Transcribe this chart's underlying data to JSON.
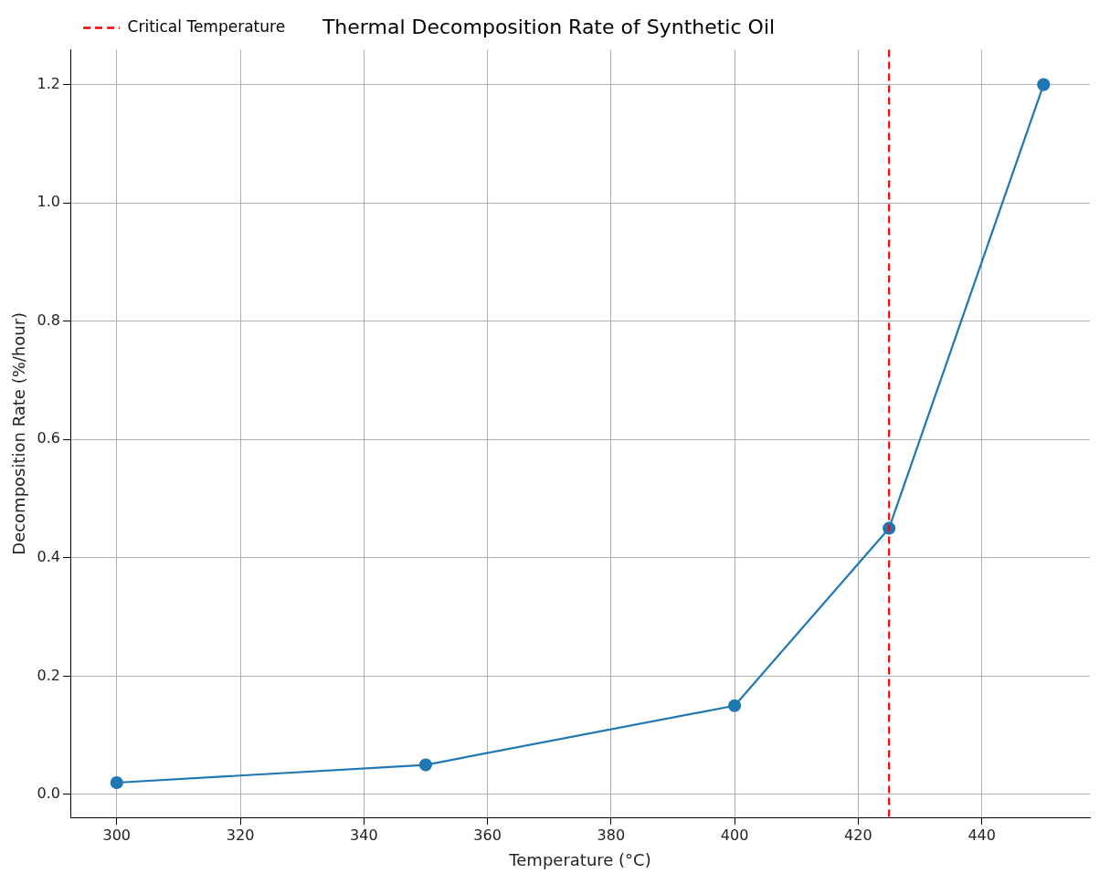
{
  "chart_data": {
    "type": "line",
    "title": "Thermal Decomposition Rate of Synthetic Oil",
    "xlabel": "Temperature (°C)",
    "ylabel": "Decomposition Rate (%/hour)",
    "x": [
      300,
      350,
      400,
      425,
      450
    ],
    "series": [
      {
        "color": "#1f77b4",
        "values": [
          0.02,
          0.05,
          0.15,
          0.45,
          1.2
        ]
      }
    ],
    "xlim": [
      292.5,
      457.5
    ],
    "xticks": [
      300,
      320,
      340,
      360,
      380,
      400,
      420,
      440
    ],
    "ylim": [
      -0.039,
      1.259
    ],
    "yticks": [
      {
        "value": 0,
        "label": "0.0"
      },
      0.2,
      0.4,
      0.6,
      0.8,
      {
        "value": 1,
        "label": "1.0"
      },
      1.2
    ],
    "ref_lines": [
      {
        "axis": "x",
        "value": 425,
        "label": "Critical Temperature",
        "color": "#ff0000",
        "line_style": "dashed"
      }
    ],
    "grid": true,
    "legend": "top left",
    "marker": "circle",
    "line_style": "solid"
  }
}
